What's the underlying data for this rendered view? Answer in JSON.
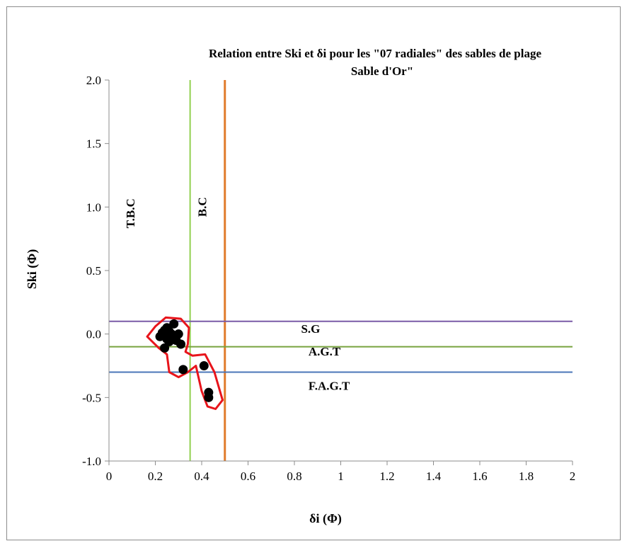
{
  "chart_data": {
    "type": "scatter",
    "title_line1": "Relation entre  Ski  et δi  pour  les \"07 radiales\"  des sables  de plage",
    "title_line2": "Sable d'Or\"",
    "xlabel": "δi (Φ)",
    "ylabel": "Ski (Φ)",
    "xlim": [
      0,
      2
    ],
    "ylim": [
      -1.0,
      2.0
    ],
    "x_ticks": [
      "0",
      "0.2",
      "0.4",
      "0.6",
      "0.8",
      "1",
      "1.2",
      "1.4",
      "1.6",
      "1.8",
      "2"
    ],
    "y_ticks": [
      "2.0",
      "1.5",
      "1.0",
      "0.5",
      "0.0",
      "-0.5",
      "-1.0"
    ],
    "grid": false,
    "points": [
      {
        "x": 0.22,
        "y": -0.02
      },
      {
        "x": 0.23,
        "y": 0.01
      },
      {
        "x": 0.24,
        "y": 0.03
      },
      {
        "x": 0.25,
        "y": 0.05
      },
      {
        "x": 0.26,
        "y": 0.02
      },
      {
        "x": 0.27,
        "y": 0.0
      },
      {
        "x": 0.28,
        "y": 0.08
      },
      {
        "x": 0.25,
        "y": -0.04
      },
      {
        "x": 0.26,
        "y": -0.06
      },
      {
        "x": 0.24,
        "y": -0.11
      },
      {
        "x": 0.27,
        "y": -0.03
      },
      {
        "x": 0.29,
        "y": -0.05
      },
      {
        "x": 0.3,
        "y": 0.0
      },
      {
        "x": 0.31,
        "y": -0.08
      },
      {
        "x": 0.32,
        "y": -0.28
      },
      {
        "x": 0.41,
        "y": -0.25
      },
      {
        "x": 0.43,
        "y": -0.46
      },
      {
        "x": 0.43,
        "y": -0.5
      }
    ],
    "reference_lines": [
      {
        "orientation": "vertical",
        "value": 0.35,
        "color": "#92d050"
      },
      {
        "orientation": "vertical",
        "value": 0.5,
        "color": "#e07b2c"
      },
      {
        "orientation": "horizontal",
        "value": 0.1,
        "color": "#7a5ba7"
      },
      {
        "orientation": "horizontal",
        "value": -0.1,
        "color": "#77a33f"
      },
      {
        "orientation": "horizontal",
        "value": -0.3,
        "color": "#4a76b8"
      }
    ],
    "annotations": [
      {
        "text": "T.B.C",
        "x": 0.11,
        "y": 0.95,
        "rotate": true
      },
      {
        "text": "B.C",
        "x": 0.42,
        "y": 1.0,
        "rotate": true
      },
      {
        "text": "S.G",
        "x": 0.87,
        "y": 0.01,
        "rotate": false
      },
      {
        "text": "A.G.T",
        "x": 0.93,
        "y": -0.17,
        "rotate": false
      },
      {
        "text": "F.A.G.T",
        "x": 0.95,
        "y": -0.44,
        "rotate": false
      }
    ],
    "highlight_color": "#e8141b",
    "point_color": "#000000"
  }
}
